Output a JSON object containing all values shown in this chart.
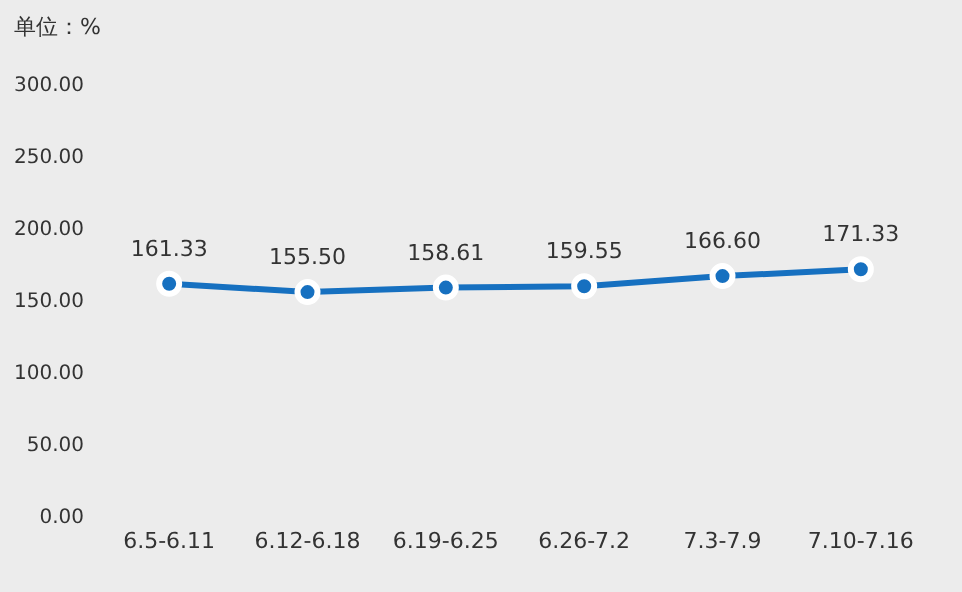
{
  "chart_data": {
    "type": "line",
    "ylabel": "单位：%",
    "categories": [
      "6.5-6.11",
      "6.12-6.18",
      "6.19-6.25",
      "6.26-7.2",
      "7.3-7.9",
      "7.10-7.16"
    ],
    "series": [
      {
        "color": "#1670c0",
        "values": [
          161.33,
          155.5,
          158.61,
          159.55,
          166.6,
          171.33
        ],
        "value_labels": [
          "161.33",
          "155.50",
          "158.61",
          "159.55",
          "166.60",
          "171.33"
        ]
      }
    ],
    "ylim": [
      0,
      300
    ],
    "yticks": [
      {
        "value": 0,
        "label": "0.00"
      },
      {
        "value": 50,
        "label": "50.00"
      },
      {
        "value": 100,
        "label": "100.00"
      },
      {
        "value": 150,
        "label": "150.00"
      },
      {
        "value": 200,
        "label": "200.00"
      },
      {
        "value": 250,
        "label": "250.00"
      },
      {
        "value": 300,
        "label": "300.00"
      }
    ],
    "grid": false,
    "legend": false,
    "marker": "circle",
    "line_style": "solid"
  }
}
